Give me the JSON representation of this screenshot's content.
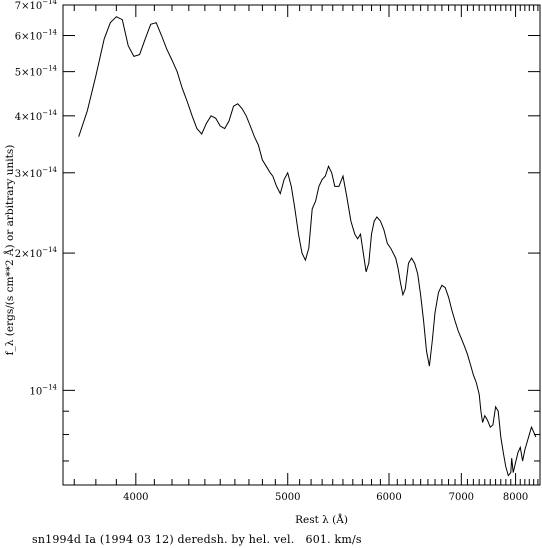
{
  "caption": "sn1994d Ia (1994 03 12) deredsh. by hel. vel.   601. km/s",
  "chart_data": {
    "type": "line",
    "xlabel": "Rest λ (Å)",
    "ylabel": "f_λ (ergs/(s cm**2 Å) or arbitrary units)",
    "y_scale": "log",
    "x_scale": "reciprocal",
    "xlim": [
      3650,
      8550
    ],
    "ylim": [
      6.2e-15,
      7e-14
    ],
    "x_ticks": [
      {
        "value": 4000,
        "label": "4000"
      },
      {
        "value": 5000,
        "label": "5000"
      },
      {
        "value": 6000,
        "label": "6000"
      },
      {
        "value": 7000,
        "label": "7000"
      },
      {
        "value": 8000,
        "label": "8000"
      }
    ],
    "y_ticks": [
      {
        "value": 1e-14,
        "mant": "",
        "exp": "-14"
      },
      {
        "value": 2e-14,
        "mant": "2",
        "exp": "-14"
      },
      {
        "value": 3e-14,
        "mant": "3",
        "exp": "-14"
      },
      {
        "value": 4e-14,
        "mant": "4",
        "exp": "-14"
      },
      {
        "value": 5e-14,
        "mant": "5",
        "exp": "-14"
      },
      {
        "value": 6e-14,
        "mant": "6",
        "exp": "-14"
      },
      {
        "value": 7e-14,
        "mant": "7",
        "exp": "-14"
      }
    ],
    "series": [
      {
        "x": [
          3720,
          3760,
          3800,
          3840,
          3870,
          3900,
          3930,
          3960,
          3990,
          4020,
          4050,
          4080,
          4110,
          4140,
          4170,
          4200,
          4230,
          4260,
          4290,
          4320,
          4350,
          4380,
          4410,
          4440,
          4470,
          4500,
          4530,
          4560,
          4590,
          4620,
          4650,
          4680,
          4710,
          4740,
          4770,
          4800,
          4830,
          4860,
          4880,
          4910,
          4940,
          4970,
          5000,
          5030,
          5060,
          5090,
          5120,
          5150,
          5180,
          5210,
          5240,
          5270,
          5300,
          5330,
          5360,
          5390,
          5420,
          5460,
          5500,
          5540,
          5580,
          5620,
          5650,
          5680,
          5710,
          5740,
          5770,
          5800,
          5830,
          5860,
          5900,
          5940,
          5980,
          6020,
          6050,
          6080,
          6110,
          6140,
          6170,
          6200,
          6240,
          6280,
          6320,
          6360,
          6400,
          6440,
          6480,
          6520,
          6560,
          6600,
          6650,
          6700,
          6750,
          6800,
          6850,
          6900,
          6950,
          7000,
          7050,
          7100,
          7150,
          7200,
          7250,
          7300,
          7330,
          7360,
          7400,
          7450,
          7500,
          7550,
          7600,
          7650,
          7700,
          7750,
          7800,
          7850,
          7900,
          7920,
          7950,
          8000,
          8050,
          8100,
          8150,
          8200,
          8250,
          8300,
          8350,
          8400,
          8450
        ],
        "y": [
          3.6e-14,
          4.1e-14,
          4.9e-14,
          5.9e-14,
          6.4e-14,
          6.6e-14,
          6.5e-14,
          5.7e-14,
          5.4e-14,
          5.45e-14,
          5.9e-14,
          6.35e-14,
          6.4e-14,
          6e-14,
          5.6e-14,
          5.3e-14,
          5e-14,
          4.6e-14,
          4.3e-14,
          4e-14,
          3.75e-14,
          3.65e-14,
          3.85e-14,
          4e-14,
          3.95e-14,
          3.8e-14,
          3.75e-14,
          3.9e-14,
          4.2e-14,
          4.25e-14,
          4.15e-14,
          4e-14,
          3.8e-14,
          3.6e-14,
          3.45e-14,
          3.2e-14,
          3.1e-14,
          3e-14,
          2.95e-14,
          2.8e-14,
          2.7e-14,
          2.9e-14,
          3e-14,
          2.8e-14,
          2.5e-14,
          2.2e-14,
          2e-14,
          1.93e-14,
          2.05e-14,
          2.5e-14,
          2.6e-14,
          2.8e-14,
          2.9e-14,
          2.95e-14,
          3.1e-14,
          3e-14,
          2.8e-14,
          2.8e-14,
          2.95e-14,
          2.65e-14,
          2.35e-14,
          2.2e-14,
          2.15e-14,
          2.2e-14,
          2e-14,
          1.82e-14,
          1.9e-14,
          2.2e-14,
          2.35e-14,
          2.4e-14,
          2.35e-14,
          2.25e-14,
          2.1e-14,
          2.05e-14,
          2e-14,
          1.95e-14,
          1.85e-14,
          1.72e-14,
          1.62e-14,
          1.67e-14,
          1.9e-14,
          1.95e-14,
          1.9e-14,
          1.8e-14,
          1.62e-14,
          1.42e-14,
          1.22e-14,
          1.13e-14,
          1.28e-14,
          1.48e-14,
          1.64e-14,
          1.7e-14,
          1.68e-14,
          1.6e-14,
          1.5e-14,
          1.42e-14,
          1.35e-14,
          1.3e-14,
          1.25e-14,
          1.2e-14,
          1.14e-14,
          1.08e-14,
          1.04e-14,
          9.8e-15,
          9e-15,
          8.5e-15,
          8.8e-15,
          8.6e-15,
          8.3e-15,
          8.4e-15,
          9.2e-15,
          9e-15,
          7.9e-15,
          7.3e-15,
          6.8e-15,
          6.5e-15,
          6.6e-15,
          7.1e-15,
          6.6e-15,
          6.95e-15,
          7.3e-15,
          7.5e-15,
          7e-15,
          7.4e-15,
          7.7e-15,
          8e-15,
          8.3e-15,
          8.1e-15,
          7.9e-15
        ]
      }
    ]
  }
}
